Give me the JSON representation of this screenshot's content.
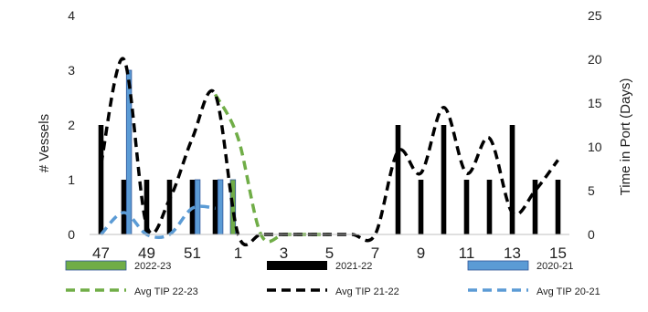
{
  "chart_data": {
    "type": "bar",
    "title": "",
    "xlabel": "",
    "ylabel": "# Vessels",
    "ylabel_right": "Time in Port (Days)",
    "categories": [
      "47",
      "48",
      "49",
      "50",
      "51",
      "52",
      "1",
      "2",
      "3",
      "4",
      "5",
      "6",
      "7",
      "8",
      "9",
      "10",
      "11",
      "12",
      "13",
      "14",
      "15"
    ],
    "x_tick_labels": [
      "47",
      "49",
      "51",
      "1",
      "3",
      "5",
      "7",
      "9",
      "11",
      "13",
      "15"
    ],
    "ylim": [
      0,
      4
    ],
    "y_ticks": [
      "0",
      "1",
      "2",
      "3",
      "4"
    ],
    "ylim_right": [
      0,
      25
    ],
    "y_ticks_right": [
      "0",
      "5",
      "10",
      "15",
      "20",
      "25"
    ],
    "grid": false,
    "legend_position": "bottom",
    "bar_series": [
      {
        "name": "2022-23",
        "color": "#70ad47",
        "values": [
          0,
          0,
          0,
          0,
          0,
          0,
          1,
          0,
          0,
          0,
          0,
          0,
          0,
          0,
          0,
          0,
          0,
          0,
          0,
          0,
          0
        ]
      },
      {
        "name": "2021-22",
        "color": "#000000",
        "values": [
          2,
          1,
          1,
          1,
          1,
          1,
          0,
          0,
          0,
          0,
          0,
          0,
          0,
          2,
          1,
          2,
          1,
          1,
          2,
          1,
          1
        ]
      },
      {
        "name": "2020-21",
        "color": "#5b9bd5",
        "values": [
          0,
          3,
          0,
          0,
          1,
          1,
          0,
          0,
          0,
          0,
          0,
          0,
          0,
          0,
          0,
          0,
          0,
          0,
          0,
          0,
          0
        ]
      }
    ],
    "line_series": [
      {
        "name": "Avg TIP 22-23",
        "color": "#70ad47",
        "axis": "right",
        "values": [
          null,
          null,
          null,
          null,
          null,
          16,
          11,
          0,
          0,
          0,
          0,
          null,
          null,
          null,
          null,
          null,
          null,
          null,
          null,
          null,
          null
        ]
      },
      {
        "name": "Avg TIP 21-22",
        "color": "#000000",
        "axis": "right",
        "values": [
          8,
          20,
          1,
          4,
          11,
          16,
          0,
          0,
          0,
          0,
          0,
          0,
          0,
          9.5,
          7,
          14.5,
          7,
          11,
          2.5,
          5,
          8.5
        ]
      },
      {
        "name": "Avg TIP 20-21",
        "color": "#5b9bd5",
        "axis": "right",
        "values": [
          0,
          2.5,
          0,
          0,
          3,
          3,
          null,
          null,
          null,
          null,
          null,
          null,
          null,
          null,
          null,
          null,
          null,
          null,
          null,
          null,
          null
        ]
      }
    ]
  }
}
